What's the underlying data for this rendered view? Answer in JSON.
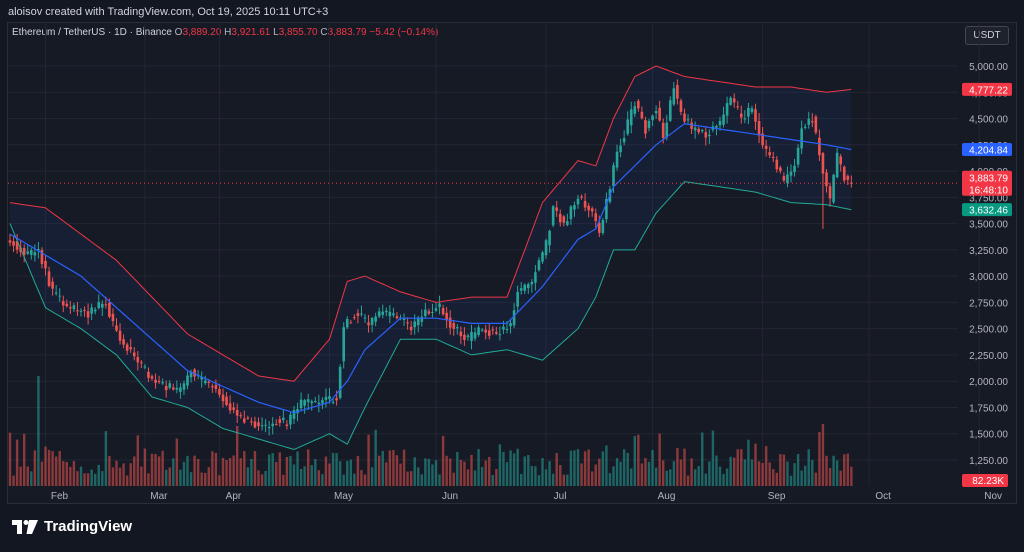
{
  "header": {
    "credit": "aloisov created with TradingView.com, Oct 19, 2025 10:11 UTC+3"
  },
  "legend": {
    "symbol": "Ethereum / TetherUS · 1D · Binance",
    "open_label": "O",
    "open": "3,889.20",
    "high_label": "H",
    "high": "3,921.61",
    "low_label": "L",
    "low": "3,855.70",
    "close_label": "C",
    "close": "3,883.79",
    "change": "−5.42 (−0.14%)"
  },
  "currency_button": "USDT",
  "footer": {
    "brand": "TradingView"
  },
  "colors": {
    "up": "#26a69a",
    "down": "#ef5350",
    "ma": "#2962ff",
    "band_upper": "#f23645",
    "band_lower": "#22ab94",
    "price_tag": "#f23645",
    "ma_tag": "#2962ff",
    "lower_tag": "#089981"
  },
  "chart_data": {
    "type": "candlestick",
    "x_labels": [
      "Feb",
      "Mar",
      "Apr",
      "May",
      "Jun",
      "Jul",
      "Aug",
      "Sep",
      "Oct",
      "Nov"
    ],
    "y_ticks": [
      1250,
      1500,
      1750,
      2000,
      2250,
      2500,
      2750,
      3000,
      3250,
      3500,
      3750,
      4000,
      4250,
      4500,
      4750,
      5000
    ],
    "y_tick_labels": [
      "1,250.00",
      "1,500.00",
      "1,750.00",
      "2,000.00",
      "2,250.00",
      "2,500.00",
      "2,750.00",
      "3,000.00",
      "3,250.00",
      "3,500.00",
      "3,750.00",
      "4,000.00",
      "4,250.00",
      "4,500.00",
      "4,750.00",
      "5,000.00"
    ],
    "ylim": [
      1050,
      5150
    ],
    "price_keypoints": [
      [
        0,
        3350
      ],
      [
        5,
        3200
      ],
      [
        8,
        3250
      ],
      [
        12,
        2850
      ],
      [
        16,
        2700
      ],
      [
        22,
        2650
      ],
      [
        27,
        2750
      ],
      [
        29,
        2550
      ],
      [
        32,
        2350
      ],
      [
        36,
        2200
      ],
      [
        40,
        2000
      ],
      [
        44,
        1950
      ],
      [
        48,
        1900
      ],
      [
        51,
        2100
      ],
      [
        54,
        2000
      ],
      [
        57,
        1950
      ],
      [
        61,
        1800
      ],
      [
        65,
        1650
      ],
      [
        69,
        1600
      ],
      [
        72,
        1550
      ],
      [
        75,
        1620
      ],
      [
        78,
        1600
      ],
      [
        82,
        1780
      ],
      [
        86,
        1800
      ],
      [
        90,
        1820
      ],
      [
        92,
        1850
      ],
      [
        94,
        2500
      ],
      [
        97,
        2650
      ],
      [
        101,
        2550
      ],
      [
        105,
        2650
      ],
      [
        109,
        2600
      ],
      [
        113,
        2500
      ],
      [
        117,
        2650
      ],
      [
        121,
        2700
      ],
      [
        125,
        2500
      ],
      [
        129,
        2400
      ],
      [
        133,
        2500
      ],
      [
        137,
        2450
      ],
      [
        141,
        2550
      ],
      [
        143,
        2850
      ],
      [
        147,
        2950
      ],
      [
        151,
        3300
      ],
      [
        153,
        3650
      ],
      [
        156,
        3500
      ],
      [
        160,
        3750
      ],
      [
        164,
        3600
      ],
      [
        166,
        3400
      ],
      [
        168,
        3700
      ],
      [
        171,
        4200
      ],
      [
        173,
        4350
      ],
      [
        176,
        4650
      ],
      [
        179,
        4400
      ],
      [
        182,
        4600
      ],
      [
        184,
        4300
      ],
      [
        187,
        4800
      ],
      [
        189,
        4550
      ],
      [
        192,
        4400
      ],
      [
        196,
        4350
      ],
      [
        200,
        4450
      ],
      [
        203,
        4700
      ],
      [
        206,
        4500
      ],
      [
        209,
        4600
      ],
      [
        212,
        4250
      ],
      [
        215,
        4100
      ],
      [
        218,
        3900
      ],
      [
        221,
        4050
      ],
      [
        223,
        4400
      ],
      [
        226,
        4500
      ],
      [
        229,
        4000
      ],
      [
        231,
        3700
      ],
      [
        233,
        4150
      ],
      [
        235,
        3950
      ],
      [
        237,
        3880
      ]
    ],
    "upper_band_keypoints": [
      [
        0,
        3700
      ],
      [
        10,
        3650
      ],
      [
        20,
        3400
      ],
      [
        30,
        3150
      ],
      [
        40,
        2800
      ],
      [
        50,
        2450
      ],
      [
        60,
        2250
      ],
      [
        70,
        2050
      ],
      [
        80,
        2000
      ],
      [
        90,
        2400
      ],
      [
        95,
        2950
      ],
      [
        100,
        3000
      ],
      [
        110,
        2850
      ],
      [
        120,
        2750
      ],
      [
        130,
        2800
      ],
      [
        140,
        2800
      ],
      [
        150,
        3700
      ],
      [
        160,
        4100
      ],
      [
        165,
        4050
      ],
      [
        170,
        4500
      ],
      [
        176,
        4900
      ],
      [
        182,
        5000
      ],
      [
        190,
        4900
      ],
      [
        200,
        4850
      ],
      [
        210,
        4800
      ],
      [
        220,
        4800
      ],
      [
        230,
        4750
      ],
      [
        237,
        4777
      ]
    ],
    "lower_band_keypoints": [
      [
        0,
        3500
      ],
      [
        10,
        2700
      ],
      [
        20,
        2500
      ],
      [
        30,
        2250
      ],
      [
        40,
        1850
      ],
      [
        50,
        1750
      ],
      [
        60,
        1550
      ],
      [
        70,
        1450
      ],
      [
        80,
        1350
      ],
      [
        90,
        1500
      ],
      [
        95,
        1400
      ],
      [
        100,
        1750
      ],
      [
        110,
        2400
      ],
      [
        120,
        2400
      ],
      [
        130,
        2250
      ],
      [
        140,
        2300
      ],
      [
        150,
        2200
      ],
      [
        160,
        2500
      ],
      [
        165,
        2800
      ],
      [
        170,
        3250
      ],
      [
        176,
        3250
      ],
      [
        182,
        3600
      ],
      [
        190,
        3900
      ],
      [
        200,
        3850
      ],
      [
        210,
        3800
      ],
      [
        220,
        3700
      ],
      [
        230,
        3680
      ],
      [
        237,
        3632
      ]
    ],
    "ma_keypoints": [
      [
        0,
        3400
      ],
      [
        10,
        3200
      ],
      [
        20,
        3000
      ],
      [
        30,
        2700
      ],
      [
        40,
        2400
      ],
      [
        50,
        2100
      ],
      [
        60,
        1950
      ],
      [
        70,
        1800
      ],
      [
        80,
        1700
      ],
      [
        90,
        1800
      ],
      [
        95,
        2000
      ],
      [
        100,
        2300
      ],
      [
        110,
        2600
      ],
      [
        120,
        2600
      ],
      [
        130,
        2550
      ],
      [
        140,
        2550
      ],
      [
        150,
        2900
      ],
      [
        160,
        3350
      ],
      [
        165,
        3450
      ],
      [
        170,
        3850
      ],
      [
        176,
        4050
      ],
      [
        182,
        4250
      ],
      [
        190,
        4450
      ],
      [
        200,
        4400
      ],
      [
        210,
        4350
      ],
      [
        220,
        4300
      ],
      [
        230,
        4250
      ],
      [
        237,
        4205
      ]
    ],
    "month_index": [
      10,
      38,
      59,
      90,
      120,
      151,
      181,
      212,
      242,
      273
    ],
    "num_days": 238,
    "price_tag": {
      "value": 3883.79,
      "label": "3,883.79",
      "countdown": "16:48:10"
    },
    "ma_tag": {
      "value": 4204.84,
      "label": "4,204.84"
    },
    "upper_tag": {
      "value": 4777.22,
      "label": "4,777.22"
    },
    "lower_tag": {
      "value": 3632.46,
      "label": "3,632.46"
    },
    "volume_tag": "82.23K"
  }
}
